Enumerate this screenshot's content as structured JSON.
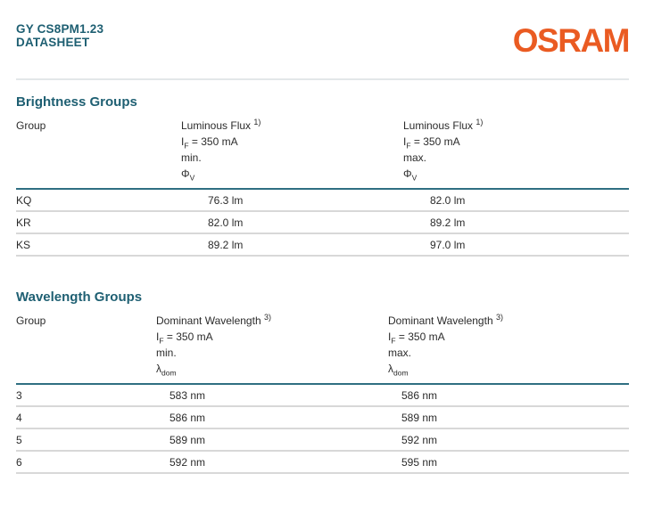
{
  "header": {
    "product": "GY CS8PM1.23",
    "doc_type": "DATASHEET",
    "brand": "OSRAM"
  },
  "colors": {
    "teal_text": "#1E5F72",
    "teal_header_line": "#2F6F82",
    "brand_orange": "#EA5B22",
    "header_divider_gray": "#E3E7E9",
    "row_line_gray": "#D8D8D8",
    "body_text": "#2B2B2B"
  },
  "tables": [
    {
      "title": "Brightness Groups",
      "group_header": "Group",
      "cols": [
        {
          "name": "Luminous Flux",
          "footnote": "1)",
          "current_symbol": "I",
          "current_sub": "F",
          "current": "= 350 mA",
          "bound": "min.",
          "symbol": "Φ",
          "symbol_sub": "V"
        },
        {
          "name": "Luminous Flux",
          "footnote": "1)",
          "current_symbol": "I",
          "current_sub": "F",
          "current": "= 350 mA",
          "bound": "max.",
          "symbol": "Φ",
          "symbol_sub": "V"
        }
      ],
      "rows": [
        {
          "group": "KQ",
          "min": "76.3 lm",
          "max": "82.0 lm"
        },
        {
          "group": "KR",
          "min": "82.0 lm",
          "max": "89.2 lm"
        },
        {
          "group": "KS",
          "min": "89.2 lm",
          "max": "97.0 lm"
        }
      ]
    },
    {
      "title": "Wavelength Groups",
      "group_header": "Group",
      "cols": [
        {
          "name": "Dominant Wavelength",
          "footnote": "3)",
          "current_symbol": "I",
          "current_sub": "F",
          "current": "= 350 mA",
          "bound": "min.",
          "symbol": "λ",
          "symbol_sub": "dom"
        },
        {
          "name": "Dominant Wavelength",
          "footnote": "3)",
          "current_symbol": "I",
          "current_sub": "F",
          "current": "= 350 mA",
          "bound": "max.",
          "symbol": "λ",
          "symbol_sub": "dom"
        }
      ],
      "rows": [
        {
          "group": "3",
          "min": "583 nm",
          "max": "586 nm"
        },
        {
          "group": "4",
          "min": "586 nm",
          "max": "589 nm"
        },
        {
          "group": "5",
          "min": "589 nm",
          "max": "592 nm"
        },
        {
          "group": "6",
          "min": "592 nm",
          "max": "595 nm"
        }
      ]
    }
  ]
}
